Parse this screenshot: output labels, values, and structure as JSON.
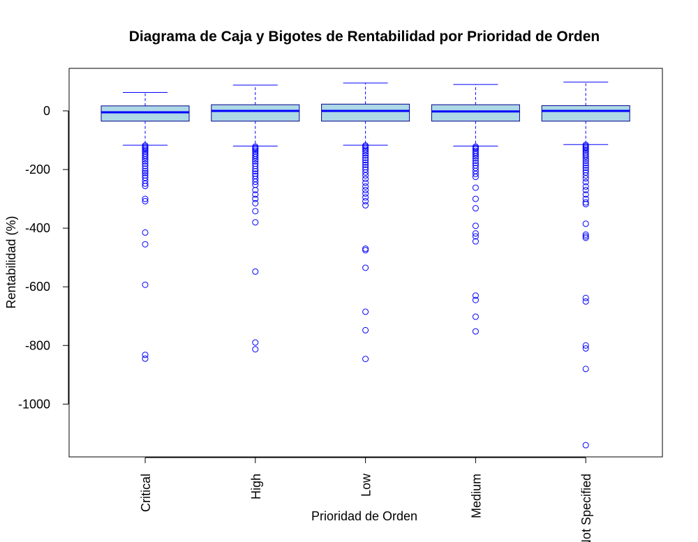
{
  "chart_data": {
    "type": "boxplot",
    "title": "Diagrama de Caja y Bigotes de Rentabilidad por Prioridad de Orden",
    "xlabel": "Prioridad de Orden",
    "ylabel": "Rentabilidad (%)",
    "ylim": [
      -1180,
      145
    ],
    "yticks": [
      0,
      -200,
      -400,
      -600,
      -800,
      -1000
    ],
    "ytick_labels": [
      "0",
      "-200",
      "-400",
      "-600",
      "-800",
      "-1000"
    ],
    "grid": false,
    "categories": [
      "Critical",
      "High",
      "Low",
      "Medium",
      "Not Specified"
    ],
    "colors": {
      "box_fill": "#add8e6",
      "box_border": "#00008b",
      "median": "#0000ff",
      "whisker": "#0000ff",
      "outlier": "#0000ff"
    },
    "boxes": [
      {
        "category": "Critical",
        "whisker_low": -117,
        "q1": -35,
        "median": -5,
        "q3": 17,
        "whisker_high": 63,
        "outliers": [
          -118,
          -122,
          -126,
          -130,
          -135,
          -140,
          -146,
          -152,
          -158,
          -165,
          -172,
          -180,
          -188,
          -197,
          -205,
          -212,
          -220,
          -228,
          -238,
          -248,
          -256,
          -300,
          -308,
          -415,
          -455,
          -593,
          -832,
          -845
        ]
      },
      {
        "category": "High",
        "whisker_low": -120,
        "q1": -35,
        "median": 0,
        "q3": 21,
        "whisker_high": 88,
        "outliers": [
          -122,
          -126,
          -130,
          -135,
          -140,
          -146,
          -152,
          -158,
          -165,
          -172,
          -180,
          -188,
          -198,
          -206,
          -214,
          -222,
          -232,
          -242,
          -252,
          -270,
          -285,
          -300,
          -315,
          -342,
          -380,
          -548,
          -790,
          -813
        ]
      },
      {
        "category": "Low",
        "whisker_low": -117,
        "q1": -35,
        "median": 0,
        "q3": 23,
        "whisker_high": 95,
        "outliers": [
          -118,
          -122,
          -127,
          -132,
          -138,
          -145,
          -152,
          -160,
          -168,
          -176,
          -184,
          -192,
          -200,
          -210,
          -220,
          -232,
          -245,
          -258,
          -270,
          -282,
          -295,
          -308,
          -322,
          -470,
          -475,
          -535,
          -685,
          -748,
          -846
        ]
      },
      {
        "category": "Medium",
        "whisker_low": -120,
        "q1": -35,
        "median": -2,
        "q3": 21,
        "whisker_high": 90,
        "outliers": [
          -122,
          -126,
          -130,
          -136,
          -142,
          -148,
          -155,
          -162,
          -170,
          -178,
          -186,
          -195,
          -205,
          -215,
          -225,
          -262,
          -300,
          -332,
          -392,
          -418,
          -428,
          -445,
          -630,
          -645,
          -702,
          -752
        ]
      },
      {
        "category": "Not Specified",
        "whisker_low": -115,
        "q1": -35,
        "median": 0,
        "q3": 18,
        "whisker_high": 98,
        "outliers": [
          -116,
          -120,
          -124,
          -128,
          -133,
          -138,
          -144,
          -150,
          -156,
          -163,
          -170,
          -178,
          -186,
          -194,
          -202,
          -210,
          -220,
          -230,
          -243,
          -258,
          -270,
          -285,
          -300,
          -312,
          -318,
          -385,
          -422,
          -428,
          -433,
          -638,
          -650,
          -800,
          -810,
          -880,
          -1140
        ]
      }
    ]
  }
}
